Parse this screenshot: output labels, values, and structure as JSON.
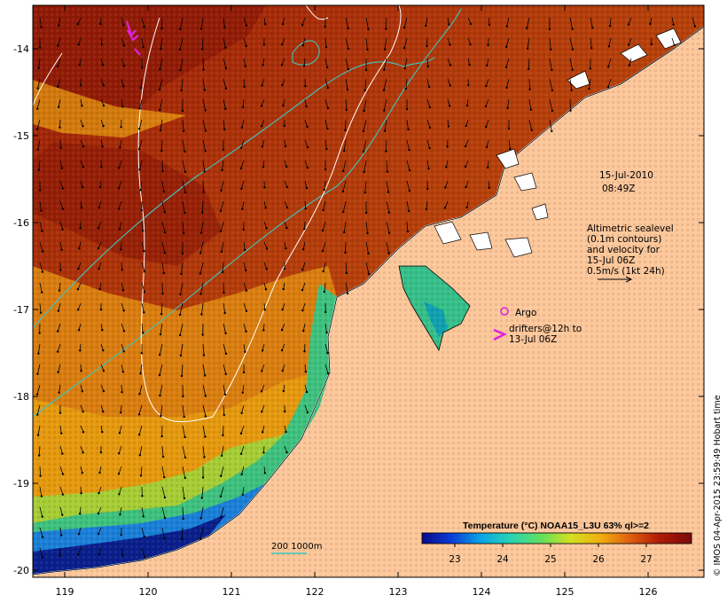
{
  "map": {
    "lon_ticks": [
      "119",
      "120",
      "121",
      "122",
      "123",
      "124",
      "125",
      "126"
    ],
    "lat_ticks": [
      "-14",
      "-15",
      "-16",
      "-17",
      "-18",
      "-19",
      "-20"
    ],
    "datetime_line1": "15-Jul-2010",
    "datetime_line2": "08:49Z",
    "altimetry_lines": [
      "Altimetric sealevel",
      "(0.1m contours)",
      "and velocity for",
      "15-Jul 06Z",
      "0.5m/s (1kt 24h)"
    ],
    "argo_label": "Argo",
    "drifters_lines": [
      "drifters@12h to",
      "13-Jul 06Z"
    ],
    "bathymetry_label": "200  1000m",
    "colorbar_title": "Temperature (°C) NOAA15_L3U 63% ql>=2",
    "colorbar_ticks": [
      "23",
      "24",
      "25",
      "26",
      "27"
    ],
    "credit": "© IMOS 04-Apr-2015 23:59:49 Hobart time",
    "colors": {
      "land": "#fdc79a",
      "warm": "#b03a0a",
      "hot": "#8a1205",
      "mid": "#e2a20c",
      "cool": "#35c07a",
      "cold": "#0a1f8c",
      "contour_shelf": "#3fc5c0",
      "sealevel": "#ffffff",
      "marker": "#e020e0"
    },
    "colorbar_stops": [
      "#0a0a8a",
      "#0a3dd6",
      "#0aa6e6",
      "#28d4b4",
      "#60e060",
      "#d2e020",
      "#f0b010",
      "#e06010",
      "#b01a08",
      "#7a0a0a"
    ]
  }
}
